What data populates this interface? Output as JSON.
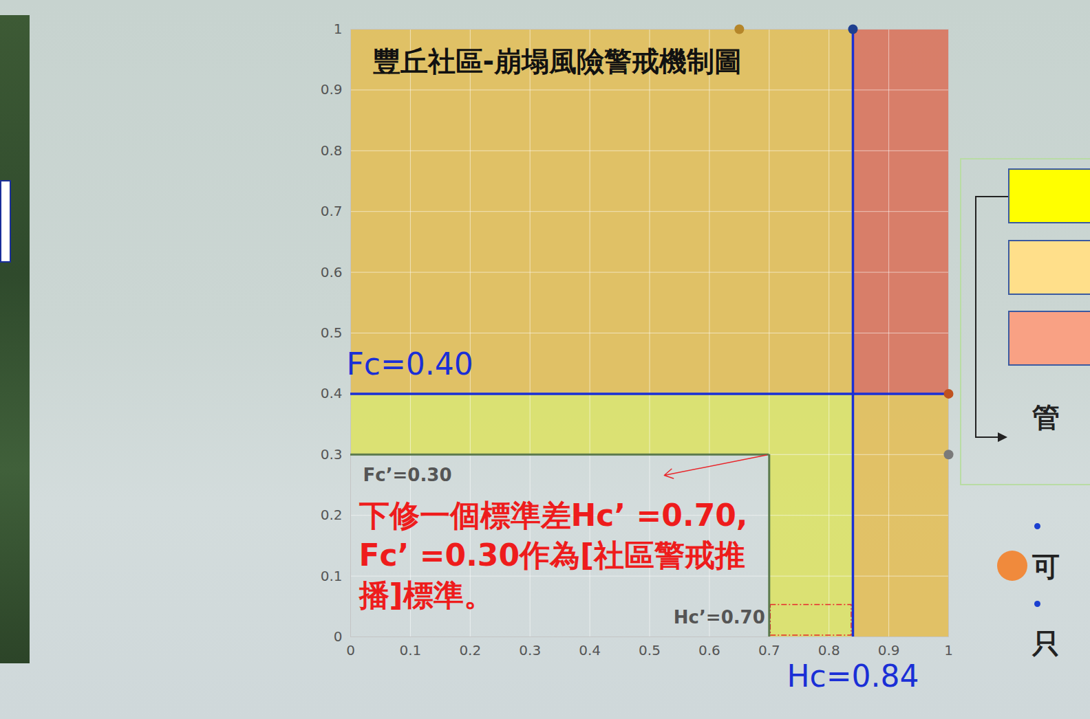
{
  "chart_data": {
    "type": "zone",
    "title": "豐丘社區-崩塌風險警戒機制圖",
    "xlim": [
      0,
      1
    ],
    "ylim": [
      0,
      1
    ],
    "xticks": [
      0,
      0.1,
      0.2,
      0.3,
      0.4,
      0.5,
      0.6,
      0.7,
      0.8,
      0.9,
      1
    ],
    "yticks": [
      0,
      0.1,
      0.2,
      0.3,
      0.4,
      0.5,
      0.6,
      0.7,
      0.8,
      0.9,
      1
    ],
    "grid": true,
    "zones": [
      {
        "x": [
          0,
          0.84
        ],
        "y": [
          0.4,
          1
        ],
        "color": "#e2bf5c"
      },
      {
        "x": [
          0.84,
          1
        ],
        "y": [
          0.4,
          1
        ],
        "color": "#d9765f"
      },
      {
        "x": [
          0.84,
          1
        ],
        "y": [
          0,
          0.4
        ],
        "color": "#e2bf5c"
      },
      {
        "x": [
          0,
          0.84
        ],
        "y": [
          0.3,
          0.4
        ],
        "color": "#dbe26a"
      },
      {
        "x": [
          0.7,
          0.84
        ],
        "y": [
          0,
          0.3
        ],
        "color": "#dbe26a"
      }
    ],
    "thresholds": [
      {
        "label": "Fc=0.40",
        "axis": "y",
        "value": 0.4,
        "range": [
          0,
          1
        ],
        "color": "#1a2fd6"
      },
      {
        "label": "Hc=0.84",
        "axis": "x",
        "value": 0.84,
        "range": [
          0,
          1
        ],
        "color": "#1a2fd6"
      },
      {
        "label": "Fc’=0.30",
        "axis": "y",
        "value": 0.3,
        "range": [
          0,
          0.7
        ],
        "color": "#5b7a4c"
      },
      {
        "label": "Hc’=0.70",
        "axis": "x",
        "value": 0.7,
        "range": [
          0,
          0.3
        ],
        "color": "#5b7a4c"
      }
    ],
    "points": [
      {
        "x": 0.65,
        "y": 1,
        "color": "#b5862a"
      },
      {
        "x": 0.84,
        "y": 1,
        "color": "#1f3f8f"
      },
      {
        "x": 1,
        "y": 0.4,
        "color": "#c0521f"
      },
      {
        "x": 1,
        "y": 0.3,
        "color": "#7a7a7a"
      }
    ],
    "annotation": [
      "下修一個標準差Hc’ =0.70,",
      "Fc’ =0.30作為[社區警戒推",
      "播]標準。"
    ],
    "side_texts": [
      "管",
      "可",
      "只"
    ]
  }
}
